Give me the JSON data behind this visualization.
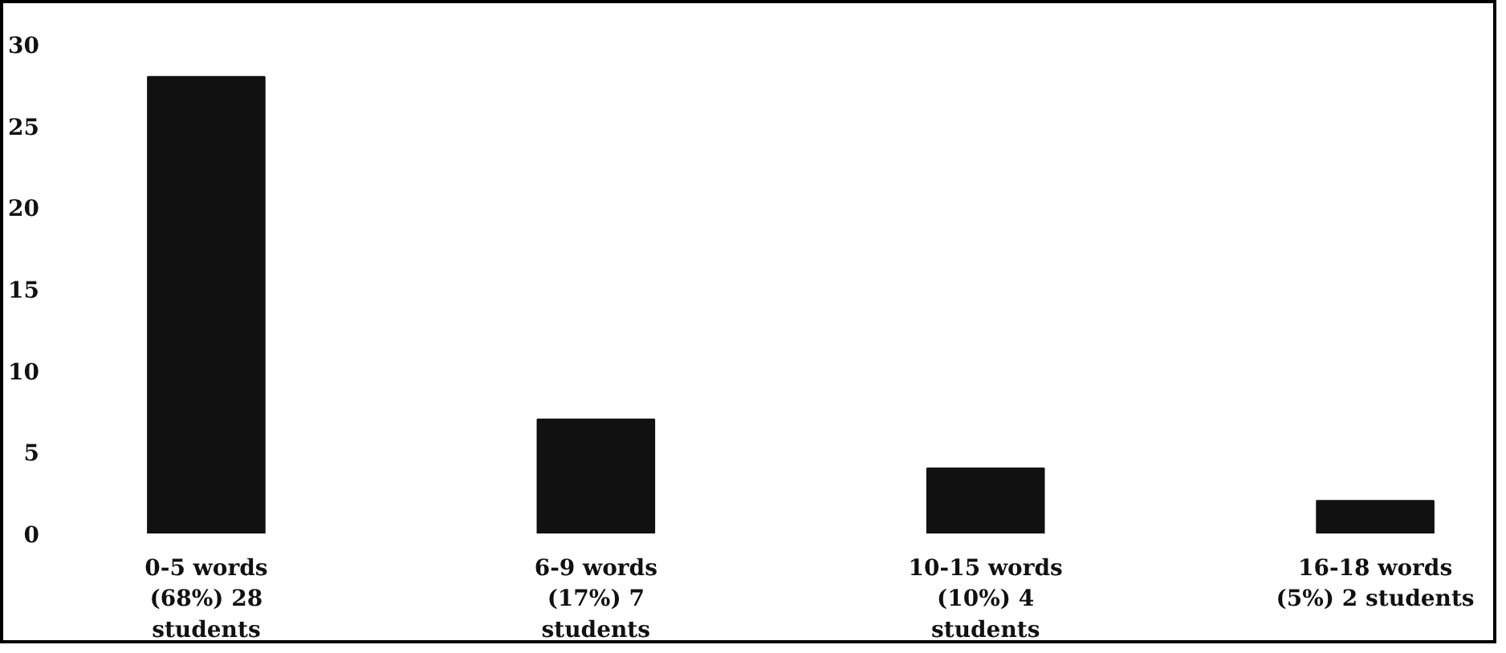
{
  "chart_data": {
    "type": "bar",
    "categories": [
      "0-5 words\n(68%) 28\nstudents",
      "6-9 words\n(17%) 7\nstudents",
      "10-15 words\n(10%) 4\nstudents",
      "16-18 words\n(5%) 2 students"
    ],
    "values": [
      28,
      7,
      4,
      2
    ],
    "color": "#111111",
    "ylim": [
      0,
      30
    ],
    "yticks": [
      0,
      5,
      10,
      15,
      20,
      25,
      30
    ],
    "grid": false
  }
}
